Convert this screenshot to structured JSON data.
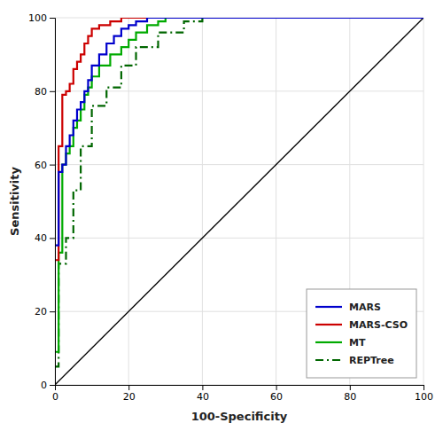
{
  "chart_data": {
    "type": "line",
    "xlabel": "100-Specificity",
    "ylabel": "Sensitivity",
    "xlim": [
      0,
      100
    ],
    "ylim": [
      0,
      100
    ],
    "xticks": [
      0,
      20,
      40,
      60,
      80,
      100
    ],
    "yticks": [
      0,
      20,
      40,
      60,
      80,
      100
    ],
    "grid": true,
    "legend": "lower right",
    "series": [
      {
        "name": "MARS",
        "color": "#0000cc",
        "line_style": "solid",
        "x": [
          0,
          1,
          1,
          2,
          2,
          3,
          3,
          4,
          4,
          5,
          5,
          6,
          6,
          7,
          7,
          8,
          8,
          9,
          9,
          10,
          10,
          12,
          12,
          14,
          14,
          16,
          16,
          18,
          18,
          20,
          20,
          22,
          22,
          25,
          25,
          28,
          28,
          35,
          35,
          100
        ],
        "values": [
          38,
          38,
          58,
          58,
          60,
          60,
          65,
          65,
          68,
          68,
          72,
          72,
          75,
          75,
          77,
          77,
          80,
          80,
          83,
          83,
          87,
          87,
          90,
          90,
          93,
          93,
          95,
          95,
          97,
          97,
          98,
          98,
          99,
          99,
          100,
          100,
          100,
          100,
          100,
          100
        ]
      },
      {
        "name": "MARS-CSO",
        "color": "#cc0000",
        "line_style": "solid",
        "x": [
          0,
          1,
          1,
          2,
          2,
          3,
          3,
          4,
          4,
          5,
          5,
          6,
          6,
          7,
          7,
          8,
          8,
          9,
          9,
          10,
          10,
          12,
          12,
          15,
          15,
          18,
          18,
          22,
          22,
          28,
          28,
          35,
          35,
          40,
          40,
          100
        ],
        "values": [
          34,
          34,
          65,
          65,
          79,
          79,
          80,
          80,
          82,
          82,
          86,
          86,
          88,
          88,
          90,
          90,
          93,
          93,
          95,
          95,
          97,
          97,
          98,
          98,
          99,
          99,
          100,
          100,
          100,
          100,
          100,
          100,
          100,
          100,
          100,
          100
        ]
      },
      {
        "name": "MT",
        "color": "#00aa00",
        "line_style": "solid",
        "x": [
          0,
          1,
          1,
          2,
          2,
          3,
          3,
          4,
          4,
          5,
          5,
          6,
          6,
          7,
          7,
          8,
          8,
          9,
          9,
          10,
          10,
          12,
          12,
          15,
          15,
          18,
          18,
          20,
          20,
          22,
          22,
          25,
          25,
          28,
          28,
          30,
          30,
          35,
          35,
          40,
          40,
          100
        ],
        "values": [
          9,
          9,
          36,
          36,
          60,
          60,
          63,
          63,
          65,
          65,
          70,
          70,
          72,
          72,
          75,
          75,
          79,
          79,
          81,
          81,
          84,
          84,
          87,
          87,
          90,
          90,
          92,
          92,
          94,
          94,
          96,
          96,
          98,
          98,
          99,
          99,
          100,
          100,
          100,
          100,
          100,
          100
        ]
      },
      {
        "name": "REPTree",
        "color": "#006600",
        "line_style": "dashdot",
        "x": [
          0,
          1,
          1,
          3,
          3,
          5,
          5,
          7,
          7,
          10,
          10,
          14,
          14,
          18,
          18,
          22,
          22,
          28,
          28,
          35,
          35,
          40,
          40,
          44,
          44,
          100
        ],
        "values": [
          5,
          5,
          33,
          33,
          40,
          40,
          53,
          53,
          65,
          65,
          76,
          76,
          81,
          81,
          87,
          87,
          92,
          92,
          96,
          96,
          99,
          99,
          100,
          100,
          100,
          100
        ]
      },
      {
        "color": "#000000",
        "line_style": "solid",
        "x": [
          0,
          100
        ],
        "values": [
          0,
          100
        ]
      }
    ]
  }
}
